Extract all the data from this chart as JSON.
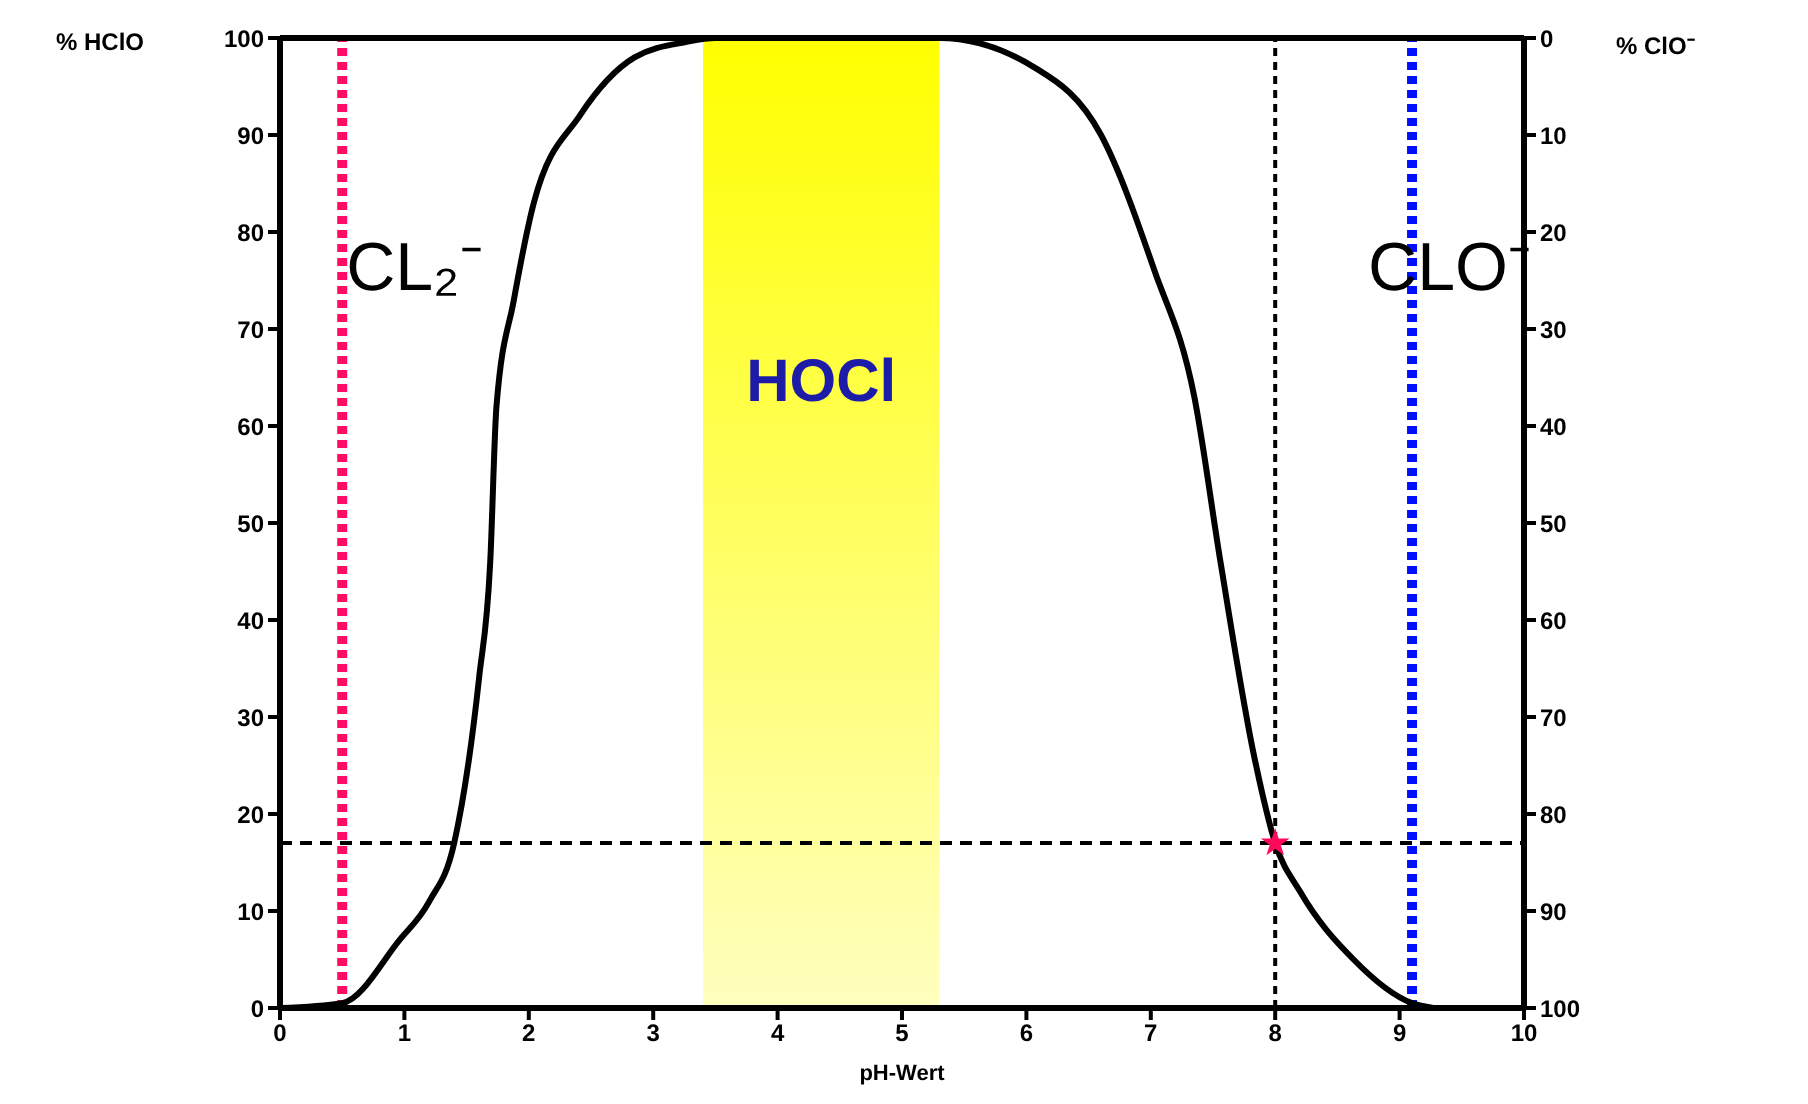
{
  "chart_data": {
    "type": "line",
    "xlabel": "pH-Wert",
    "ylabel": "% HClO",
    "y2label": "% ClO⁻",
    "xlim": [
      0,
      10
    ],
    "xticks": [
      0,
      1,
      2,
      3,
      4,
      5,
      6,
      7,
      8,
      9,
      10
    ],
    "ylim": [
      0,
      100
    ],
    "yticks": [
      0,
      10,
      20,
      30,
      40,
      50,
      60,
      70,
      80,
      90,
      100
    ],
    "y2lim": [
      100,
      0
    ],
    "y2ticks": [
      0,
      10,
      20,
      30,
      40,
      50,
      60,
      70,
      80,
      90,
      100
    ],
    "legend": false,
    "series": [
      {
        "color": "#000000",
        "marker": "none",
        "line_style": "solid",
        "x": [
          0,
          0.5,
          0.96,
          1.2,
          1.4,
          1.6,
          1.69,
          1.74,
          1.88,
          2.04,
          2.41,
          2.85,
          3.27,
          3.5,
          5.3,
          6.06,
          6.6,
          7.03,
          7.35,
          7.56,
          7.83,
          8.0,
          8.2,
          8.63,
          9.1,
          9.27
        ],
        "values": [
          0,
          0.5,
          7,
          11,
          17,
          34,
          46,
          62,
          73,
          83,
          92,
          98,
          99.6,
          100,
          100,
          97,
          90,
          76,
          63,
          46,
          26,
          17,
          12,
          5,
          0.5,
          0
        ]
      },
      {
        "type": "scatter",
        "color": "#ff0a5a",
        "marker": "star",
        "x": [
          8
        ],
        "values": [
          17
        ]
      }
    ],
    "ref_lines": [
      {
        "axis": "x",
        "value": 0.5,
        "label": "CL₂⁻",
        "color": "#ff0a64",
        "line_style": "dotted"
      },
      {
        "axis": "x",
        "value": 9.1,
        "label": "CLO⁻",
        "color": "#0010ff",
        "line_style": "dotted"
      },
      {
        "axis": "x",
        "value": 8,
        "color": "#000000",
        "line_style": "dotted"
      },
      {
        "axis": "y",
        "value": 17,
        "color": "#000000",
        "line_style": "dashed"
      }
    ],
    "bands": [
      {
        "axis": "x",
        "from": 3.4,
        "to": 5.3,
        "label": "HOCl",
        "color": "#ffff00"
      }
    ]
  }
}
